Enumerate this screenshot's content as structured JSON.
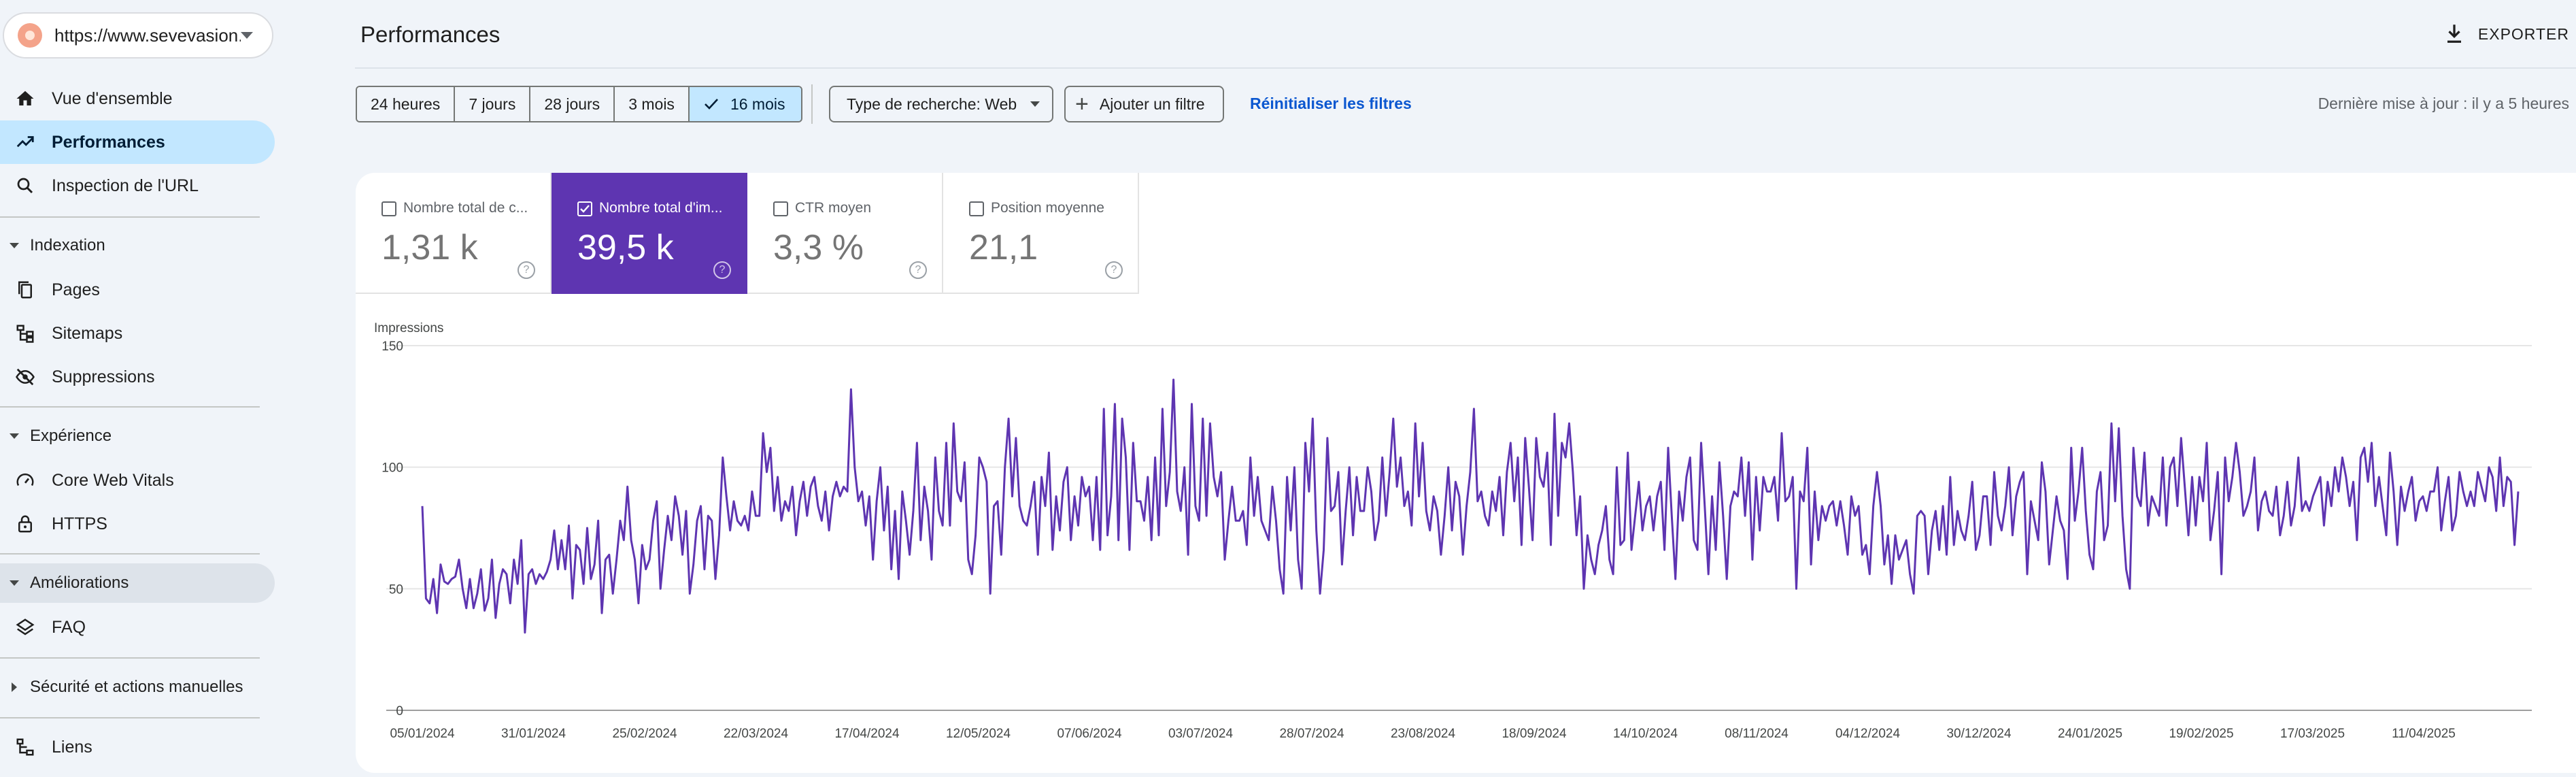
{
  "property": {
    "url": "https://www.sevevasion..."
  },
  "sidebar": {
    "items": [
      {
        "label": "Vue d'ensemble",
        "icon": "home-icon"
      },
      {
        "label": "Performances",
        "icon": "trending-up-icon",
        "active": true
      },
      {
        "label": "Inspection de l'URL",
        "icon": "search-icon"
      }
    ],
    "sections": [
      {
        "label": "Indexation",
        "expanded": true,
        "items": [
          {
            "label": "Pages",
            "icon": "pages-icon"
          },
          {
            "label": "Sitemaps",
            "icon": "sitemap-icon"
          },
          {
            "label": "Suppressions",
            "icon": "eye-off-icon"
          }
        ]
      },
      {
        "label": "Expérience",
        "expanded": true,
        "items": [
          {
            "label": "Core Web Vitals",
            "icon": "gauge-icon"
          },
          {
            "label": "HTTPS",
            "icon": "lock-icon"
          }
        ]
      },
      {
        "label": "Améliorations",
        "expanded": true,
        "highlighted": true,
        "items": [
          {
            "label": "FAQ",
            "icon": "layers-icon"
          }
        ]
      },
      {
        "label": "Sécurité et actions manuelles",
        "expanded": false,
        "items": []
      }
    ],
    "bottom_items": [
      {
        "label": "Liens",
        "icon": "links-icon"
      }
    ]
  },
  "header": {
    "title": "Performances",
    "export_label": "EXPORTER"
  },
  "filters": {
    "ranges": [
      "24 heures",
      "7 jours",
      "28 jours",
      "3 mois",
      "16 mois"
    ],
    "selected_range": "16 mois",
    "search_type": "Type de recherche: Web",
    "add_filter": "Ajouter un filtre",
    "reset": "Réinitialiser les filtres",
    "last_update": "Dernière mise à jour : il y a 5 heures"
  },
  "metrics": [
    {
      "label": "Nombre total de c...",
      "value": "1,31 k",
      "checked": false
    },
    {
      "label": "Nombre total d'im...",
      "value": "39,5 k",
      "checked": true
    },
    {
      "label": "CTR moyen",
      "value": "3,3 %",
      "checked": false
    },
    {
      "label": "Position moyenne",
      "value": "21,1",
      "checked": false
    }
  ],
  "colors": {
    "accent": "#5e35b1",
    "active_nav": "#c2e7ff",
    "link": "#0b57d0"
  },
  "chart_data": {
    "type": "line",
    "ylabel": "Impressions",
    "ylim": [
      0,
      150
    ],
    "yticks": [
      0,
      50,
      100,
      150
    ],
    "grid": true,
    "x_start": "05/01/2024",
    "x_end": "01/05/2025",
    "xticks": [
      "05/01/2024",
      "31/01/2024",
      "25/02/2024",
      "22/03/2024",
      "17/04/2024",
      "12/05/2024",
      "07/06/2024",
      "03/07/2024",
      "28/07/2024",
      "23/08/2024",
      "18/09/2024",
      "14/10/2024",
      "08/11/2024",
      "04/12/2024",
      "30/12/2024",
      "24/01/2025",
      "19/02/2025",
      "17/03/2025",
      "11/04/2025"
    ],
    "series": [
      {
        "color": "#5e35b1",
        "values": [
          84,
          46,
          44,
          54,
          40,
          60,
          53,
          52,
          54,
          55,
          62,
          50,
          42,
          54,
          42,
          48,
          58,
          41,
          46,
          62,
          38,
          52,
          58,
          56,
          44,
          62,
          52,
          70,
          32,
          56,
          58,
          52,
          56,
          54,
          57,
          62,
          74,
          58,
          70,
          58,
          76,
          46,
          68,
          66,
          52,
          75,
          54,
          60,
          78,
          40,
          62,
          64,
          48,
          62,
          78,
          70,
          92,
          70,
          62,
          44,
          68,
          58,
          62,
          78,
          86,
          50,
          66,
          80,
          70,
          88,
          80,
          64,
          82,
          48,
          60,
          78,
          84,
          58,
          80,
          78,
          54,
          72,
          104,
          88,
          74,
          86,
          78,
          76,
          80,
          74,
          90,
          80,
          80,
          114,
          98,
          108,
          82,
          96,
          78,
          86,
          82,
          92,
          72,
          86,
          94,
          80,
          92,
          96,
          84,
          78,
          90,
          74,
          88,
          94,
          88,
          92,
          90,
          132,
          100,
          86,
          90,
          76,
          88,
          62,
          86,
          100,
          74,
          92,
          58,
          82,
          54,
          90,
          78,
          64,
          82,
          110,
          70,
          92,
          82,
          62,
          104,
          82,
          76,
          110,
          76,
          118,
          90,
          86,
          102,
          62,
          56,
          72,
          104,
          100,
          94,
          48,
          84,
          86,
          64,
          100,
          120,
          88,
          112,
          84,
          78,
          76,
          84,
          94,
          64,
          96,
          84,
          106,
          66,
          88,
          74,
          94,
          100,
          70,
          88,
          76,
          96,
          88,
          92,
          70,
          96,
          66,
          124,
          72,
          88,
          126,
          70,
          120,
          104,
          66,
          110,
          86,
          86,
          78,
          96,
          70,
          104,
          72,
          124,
          84,
          98,
          136,
          90,
          82,
          100,
          64,
          126,
          84,
          78,
          120,
          80,
          118,
          96,
          88,
          98,
          62,
          78,
          92,
          78,
          78,
          82,
          68,
          104,
          80,
          96,
          78,
          74,
          70,
          92,
          78,
          58,
          48,
          96,
          74,
          100,
          62,
          50,
          110,
          90,
          120,
          74,
          48,
          66,
          112,
          82,
          84,
          98,
          60,
          82,
          100,
          72,
          96,
          82,
          82,
          100,
          90,
          70,
          78,
          104,
          80,
          98,
          120,
          92,
          104,
          84,
          90,
          76,
          118,
          88,
          110,
          82,
          74,
          88,
          82,
          64,
          80,
          100,
          74,
          94,
          88,
          64,
          84,
          98,
          124,
          86,
          90,
          80,
          76,
          90,
          82,
          96,
          72,
          98,
          110,
          86,
          104,
          68,
          112,
          92,
          70,
          112,
          96,
          92,
          106,
          68,
          122,
          80,
          110,
          104,
          118,
          98,
          72,
          88,
          50,
          72,
          62,
          56,
          68,
          74,
          84,
          62,
          56,
          100,
          68,
          70,
          106,
          66,
          80,
          94,
          74,
          84,
          88,
          74,
          88,
          94,
          66,
          108,
          80,
          54,
          90,
          78,
          96,
          104,
          70,
          66,
          110,
          84,
          56,
          88,
          66,
          102,
          80,
          54,
          84,
          90,
          88,
          104,
          80,
          102,
          62,
          96,
          74,
          96,
          90,
          90,
          96,
          78,
          114,
          86,
          88,
          96,
          50,
          90,
          86,
          108,
          60,
          90,
          70,
          84,
          78,
          84,
          86,
          76,
          86,
          76,
          64,
          88,
          80,
          84,
          64,
          68,
          56,
          84,
          98,
          84,
          60,
          72,
          52,
          72,
          62,
          66,
          70,
          56,
          48,
          80,
          82,
          80,
          56,
          74,
          82,
          66,
          84,
          64,
          96,
          68,
          82,
          74,
          70,
          80,
          94,
          66,
          72,
          88,
          88,
          68,
          98,
          80,
          74,
          84,
          100,
          72,
          88,
          94,
          98,
          56,
          86,
          78,
          70,
          102,
          90,
          60,
          74,
          88,
          78,
          74,
          54,
          108,
          78,
          90,
          108,
          82,
          64,
          58,
          90,
          98,
          70,
          76,
          118,
          86,
          116,
          80,
          58,
          50,
          108,
          88,
          84,
          106,
          76,
          88,
          84,
          80,
          104,
          76,
          100,
          104,
          84,
          112,
          92,
          72,
          96,
          76,
          96,
          86,
          110,
          70,
          82,
          98,
          56,
          104,
          86,
          96,
          110,
          98,
          80,
          84,
          90,
          104,
          74,
          86,
          90,
          82,
          80,
          92,
          72,
          80,
          94,
          76,
          84,
          104,
          82,
          86,
          82,
          88,
          92,
          96,
          76,
          94,
          84,
          100,
          90,
          104,
          96,
          84,
          94,
          70,
          104,
          108,
          94,
          110,
          84,
          96,
          84,
          72,
          106,
          90,
          68,
          92,
          82,
          90,
          96,
          78,
          86,
          88,
          82,
          90,
          90,
          100,
          74,
          86,
          96,
          74,
          80,
          98,
          90,
          84,
          90,
          84,
          98,
          92,
          86,
          100,
          96,
          82,
          104,
          84,
          96,
          94,
          68,
          90
        ]
      }
    ]
  }
}
